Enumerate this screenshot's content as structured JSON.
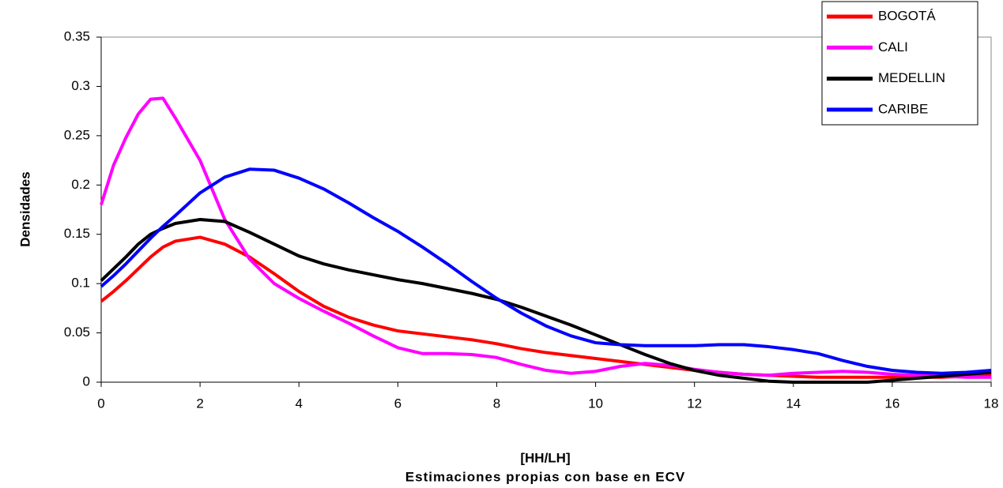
{
  "chart_data": {
    "type": "line",
    "x_label": "[HH/LH]",
    "subtitle": "Estimaciones propias con base en ECV",
    "y_label": "Densidades",
    "x": [
      0,
      0.25,
      0.5,
      0.75,
      1,
      1.25,
      1.5,
      2,
      2.5,
      3,
      3.5,
      4,
      4.5,
      5,
      5.5,
      6,
      6.5,
      7,
      7.5,
      8,
      8.5,
      9,
      9.5,
      10,
      10.5,
      11,
      11.5,
      12,
      12.5,
      13,
      13.5,
      14,
      14.5,
      15,
      15.5,
      16,
      16.5,
      17,
      17.5,
      18
    ],
    "series": [
      {
        "name": "BOGOTÁ",
        "color": "#ff0000",
        "values": [
          0.082,
          0.092,
          0.103,
          0.115,
          0.127,
          0.137,
          0.143,
          0.147,
          0.14,
          0.127,
          0.11,
          0.092,
          0.077,
          0.066,
          0.058,
          0.052,
          0.049,
          0.046,
          0.043,
          0.039,
          0.034,
          0.03,
          0.027,
          0.024,
          0.021,
          0.018,
          0.015,
          0.012,
          0.01,
          0.008,
          0.007,
          0.006,
          0.005,
          0.005,
          0.005,
          0.005,
          0.005,
          0.005,
          0.006,
          0.007
        ]
      },
      {
        "name": "CALI",
        "color": "#ff00ff",
        "values": [
          0.18,
          0.22,
          0.248,
          0.272,
          0.287,
          0.288,
          0.268,
          0.225,
          0.165,
          0.125,
          0.1,
          0.085,
          0.072,
          0.06,
          0.047,
          0.035,
          0.029,
          0.029,
          0.028,
          0.025,
          0.018,
          0.012,
          0.009,
          0.011,
          0.016,
          0.019,
          0.017,
          0.013,
          0.01,
          0.008,
          0.007,
          0.009,
          0.01,
          0.011,
          0.01,
          0.008,
          0.007,
          0.006,
          0.005,
          0.005
        ]
      },
      {
        "name": "MEDELLIN",
        "color": "#000000",
        "values": [
          0.103,
          0.115,
          0.127,
          0.14,
          0.15,
          0.156,
          0.161,
          0.165,
          0.163,
          0.152,
          0.14,
          0.128,
          0.12,
          0.114,
          0.109,
          0.104,
          0.1,
          0.095,
          0.09,
          0.084,
          0.076,
          0.067,
          0.058,
          0.048,
          0.038,
          0.028,
          0.019,
          0.012,
          0.007,
          0.004,
          0.001,
          0,
          0,
          0,
          0,
          0.002,
          0.004,
          0.006,
          0.008,
          0.01
        ]
      },
      {
        "name": "CARIBE",
        "color": "#0000ff",
        "values": [
          0.097,
          0.108,
          0.12,
          0.133,
          0.146,
          0.158,
          0.169,
          0.192,
          0.208,
          0.216,
          0.215,
          0.207,
          0.196,
          0.182,
          0.167,
          0.153,
          0.137,
          0.12,
          0.102,
          0.085,
          0.07,
          0.057,
          0.047,
          0.04,
          0.038,
          0.037,
          0.037,
          0.037,
          0.038,
          0.038,
          0.036,
          0.033,
          0.029,
          0.022,
          0.016,
          0.012,
          0.01,
          0.009,
          0.01,
          0.012
        ]
      }
    ],
    "xlim": [
      0,
      18
    ],
    "xticks": [
      0,
      2,
      4,
      6,
      8,
      10,
      12,
      14,
      16,
      18
    ],
    "ylim": [
      0,
      0.35
    ],
    "yticks": [
      0,
      0.05,
      0.1,
      0.15,
      0.2,
      0.25,
      0.3,
      0.35
    ],
    "legend_position": "top-right"
  }
}
